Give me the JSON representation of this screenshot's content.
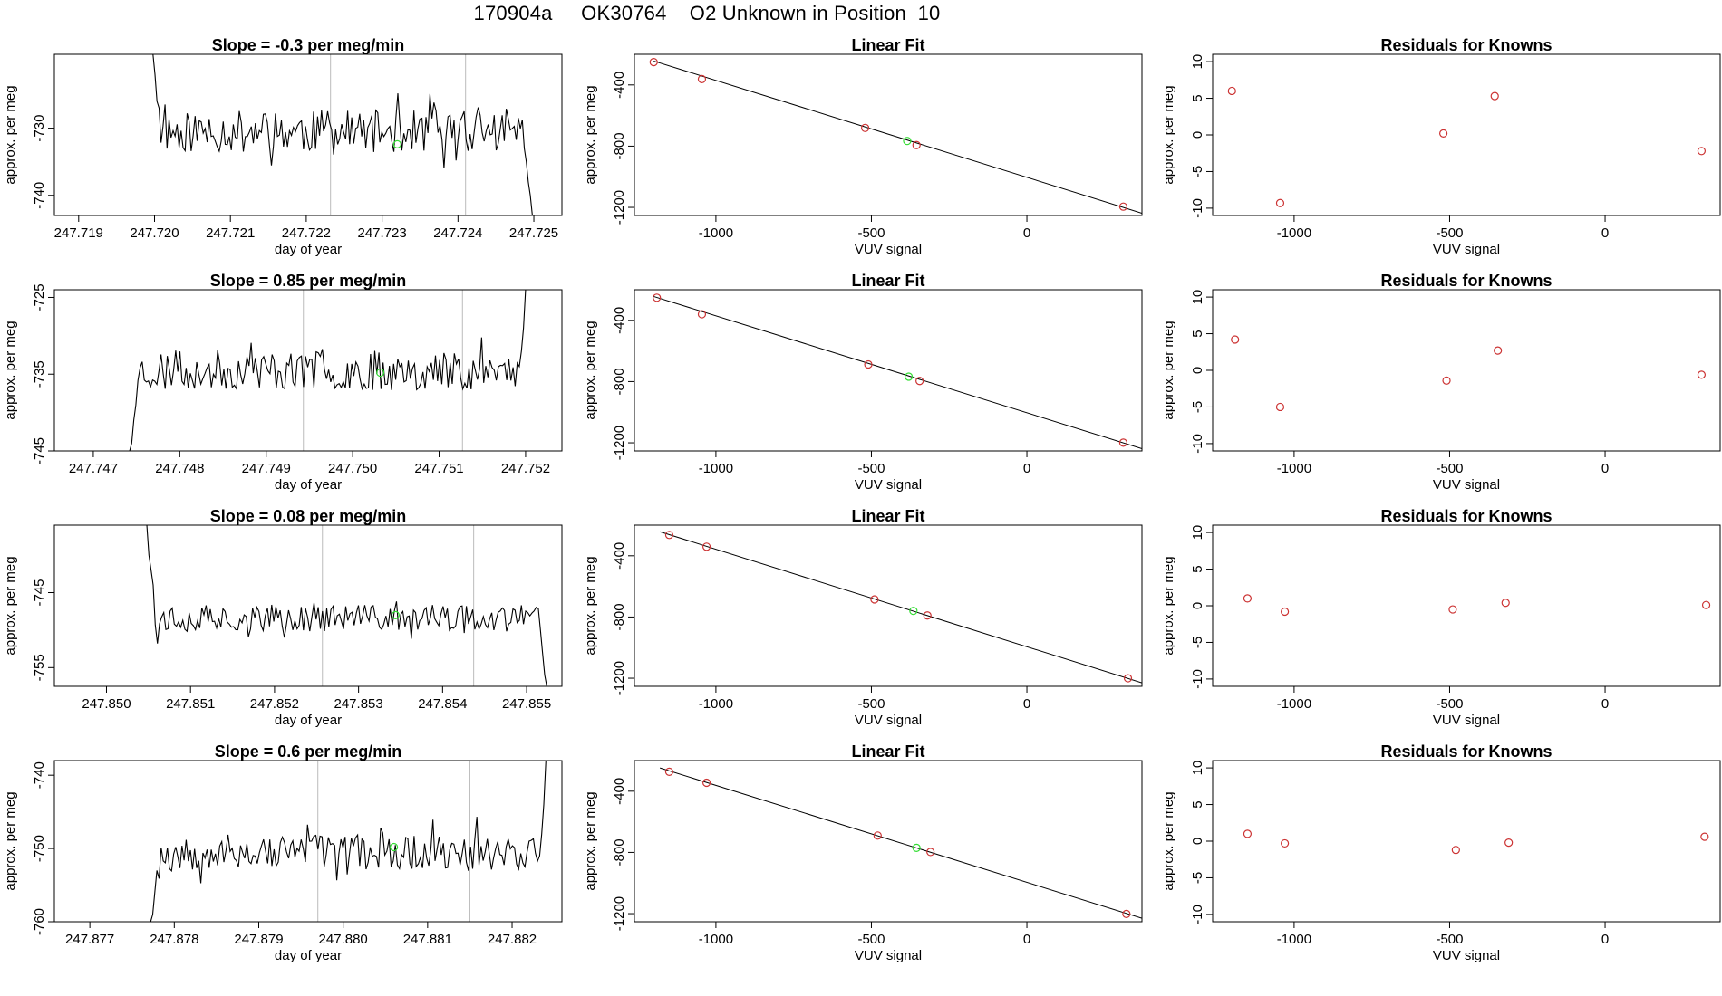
{
  "figure": {
    "title": "170904a     OK30764    O2 Unknown in Position  10"
  },
  "colors": {
    "trace": "#000000",
    "known_point": "#cc3333",
    "unknown_point": "#33dd33",
    "marker_line": "#bbbbbb"
  },
  "chart_data": [
    {
      "type": "line",
      "row": 1,
      "panel": "time",
      "title": "Slope =  -0.3  per meg/min",
      "xlabel": "day of year",
      "ylabel": "approx. per meg",
      "xlim": [
        247.71868,
        247.72537
      ],
      "ylim": [
        -743,
        -719
      ],
      "xticks": [
        247.719,
        247.72,
        247.721,
        247.722,
        247.723,
        247.724,
        247.725
      ],
      "xtick_labels": [
        "247.719",
        "247.720",
        "247.721",
        "247.722",
        "247.723",
        "247.724",
        "247.725"
      ],
      "yticks": [
        -740,
        -730
      ],
      "ytick_labels": [
        "-740",
        "-730"
      ],
      "markers_x": [
        247.72232,
        247.7241
      ],
      "trace": {
        "start": 247.71998,
        "end": 247.72498,
        "base": -730.5,
        "amp": 3.2,
        "seed": 11,
        "head": [
          -719,
          -722,
          -726,
          -727
        ],
        "tail": [
          -733,
          -735,
          -738,
          -740,
          -743
        ]
      },
      "unknown_point": {
        "x": 247.7232,
        "y": -732.4
      }
    },
    {
      "type": "scatter",
      "row": 1,
      "panel": "fit",
      "title": "Linear Fit",
      "xlabel": "VUV signal",
      "ylabel": "approx. per meg",
      "xlim": [
        -1262,
        370
      ],
      "ylim": [
        -1253,
        -200
      ],
      "xticks": [
        -1000,
        -500,
        0
      ],
      "xtick_labels": [
        "-1000",
        "-500",
        "0"
      ],
      "yticks": [
        -400,
        -800,
        -1200
      ],
      "ytick_labels": [
        "-400",
        "-800",
        "-1200"
      ],
      "line": {
        "x": [
          -1200,
          370
        ],
        "y": [
          -244,
          -1238
        ]
      },
      "knowns": [
        {
          "x": -1200,
          "y": -251
        },
        {
          "x": -1045,
          "y": -362
        },
        {
          "x": -520,
          "y": -681
        },
        {
          "x": -355,
          "y": -793
        },
        {
          "x": 310,
          "y": -1195
        }
      ],
      "unknown": {
        "x": -385,
        "y": -766
      }
    },
    {
      "type": "scatter",
      "row": 1,
      "panel": "residuals",
      "title": "Residuals for Knowns",
      "xlabel": "VUV signal",
      "ylabel": "approx. per meg",
      "xlim": [
        -1262,
        370
      ],
      "ylim": [
        -11,
        11
      ],
      "xticks": [
        -1000,
        -500,
        0
      ],
      "xtick_labels": [
        "-1000",
        "-500",
        "0"
      ],
      "yticks": [
        10,
        5,
        0,
        -5,
        -10
      ],
      "ytick_labels": [
        "10",
        "5",
        "0",
        "-5",
        "-10"
      ],
      "points": [
        {
          "x": -1200,
          "y": 6.0
        },
        {
          "x": -1045,
          "y": -9.3
        },
        {
          "x": -520,
          "y": 0.2
        },
        {
          "x": -355,
          "y": 5.3
        },
        {
          "x": 310,
          "y": -2.2
        }
      ]
    },
    {
      "type": "line",
      "row": 2,
      "panel": "time",
      "title": "Slope =  0.85  per meg/min",
      "xlabel": "day of year",
      "ylabel": "approx. per meg",
      "xlim": [
        247.74655,
        247.75242
      ],
      "ylim": [
        -745,
        -724
      ],
      "xticks": [
        247.747,
        247.748,
        247.749,
        247.75,
        247.751,
        247.752
      ],
      "xtick_labels": [
        "247.747",
        "247.748",
        "247.749",
        "247.750",
        "247.751",
        "247.752"
      ],
      "yticks": [
        -745,
        -735,
        -725
      ],
      "ytick_labels": [
        "-745",
        "-735",
        "-725"
      ],
      "markers_x": [
        247.74943,
        247.75127
      ],
      "trace": {
        "start": 247.74742,
        "end": 247.752,
        "base": -734.5,
        "amp": 2.6,
        "seed": 23,
        "head": [
          -745,
          -744,
          -741,
          -739
        ],
        "tail": [
          -734,
          -732,
          -729,
          -724
        ]
      },
      "unknown_point": {
        "x": 247.75032,
        "y": -734.8
      }
    },
    {
      "type": "scatter",
      "row": 2,
      "panel": "fit",
      "title": "Linear Fit",
      "xlabel": "VUV signal",
      "ylabel": "approx. per meg",
      "xlim": [
        -1262,
        370
      ],
      "ylim": [
        -1253,
        -200
      ],
      "xticks": [
        -1000,
        -500,
        0
      ],
      "xtick_labels": [
        "-1000",
        "-500",
        "0"
      ],
      "yticks": [
        -400,
        -800,
        -1200
      ],
      "ytick_labels": [
        "-400",
        "-800",
        "-1200"
      ],
      "line": {
        "x": [
          -1200,
          370
        ],
        "y": [
          -244,
          -1238
        ]
      },
      "knowns": [
        {
          "x": -1190,
          "y": -252
        },
        {
          "x": -1045,
          "y": -360
        },
        {
          "x": -510,
          "y": -688
        },
        {
          "x": -345,
          "y": -796
        },
        {
          "x": 310,
          "y": -1199
        }
      ],
      "unknown": {
        "x": -380,
        "y": -768
      }
    },
    {
      "type": "scatter",
      "row": 2,
      "panel": "residuals",
      "title": "Residuals for Knowns",
      "xlabel": "VUV signal",
      "ylabel": "approx. per meg",
      "xlim": [
        -1262,
        370
      ],
      "ylim": [
        -11,
        11
      ],
      "xticks": [
        -1000,
        -500,
        0
      ],
      "xtick_labels": [
        "-1000",
        "-500",
        "0"
      ],
      "yticks": [
        10,
        5,
        0,
        -5,
        -10
      ],
      "ytick_labels": [
        "10",
        "5",
        "0",
        "-5",
        "-10"
      ],
      "points": [
        {
          "x": -1190,
          "y": 4.2
        },
        {
          "x": -1045,
          "y": -5.0
        },
        {
          "x": -510,
          "y": -1.4
        },
        {
          "x": -345,
          "y": 2.7
        },
        {
          "x": 310,
          "y": -0.6
        }
      ]
    },
    {
      "type": "line",
      "row": 3,
      "panel": "time",
      "title": "Slope =  0.08  per meg/min",
      "xlabel": "day of year",
      "ylabel": "approx. per meg",
      "xlim": [
        247.84938,
        247.85542
      ],
      "ylim": [
        -757.5,
        -736
      ],
      "xticks": [
        247.85,
        247.851,
        247.852,
        247.853,
        247.854,
        247.855
      ],
      "xtick_labels": [
        "247.850",
        "247.851",
        "247.852",
        "247.853",
        "247.854",
        "247.855"
      ],
      "yticks": [
        -755,
        -745
      ],
      "ytick_labels": [
        "-755",
        "-745"
      ],
      "markers_x": [
        247.85257,
        247.85437
      ],
      "trace": {
        "start": 247.85048,
        "end": 247.85524,
        "base": -748.4,
        "amp": 1.8,
        "seed": 37,
        "head": [
          -736,
          -740,
          -742,
          -744
        ],
        "tail": [
          -750,
          -753,
          -756,
          -757.5
        ]
      },
      "unknown_point": {
        "x": 247.85344,
        "y": -748.0
      }
    },
    {
      "type": "scatter",
      "row": 3,
      "panel": "fit",
      "title": "Linear Fit",
      "xlabel": "VUV signal",
      "ylabel": "approx. per meg",
      "xlim": [
        -1262,
        370
      ],
      "ylim": [
        -1253,
        -200
      ],
      "xticks": [
        -1000,
        -500,
        0
      ],
      "xtick_labels": [
        "-1000",
        "-500",
        "0"
      ],
      "yticks": [
        -400,
        -800,
        -1200
      ],
      "ytick_labels": [
        "-400",
        "-800",
        "-1200"
      ],
      "line": {
        "x": [
          -1180,
          370
        ],
        "y": [
          -243,
          -1230
        ]
      },
      "knowns": [
        {
          "x": -1150,
          "y": -264
        },
        {
          "x": -1030,
          "y": -341
        },
        {
          "x": -490,
          "y": -685
        },
        {
          "x": -320,
          "y": -790
        },
        {
          "x": 325,
          "y": -1200
        }
      ],
      "unknown": {
        "x": -365,
        "y": -760
      }
    },
    {
      "type": "scatter",
      "row": 3,
      "panel": "residuals",
      "title": "Residuals for Knowns",
      "xlabel": "VUV signal",
      "ylabel": "approx. per meg",
      "xlim": [
        -1262,
        370
      ],
      "ylim": [
        -11,
        11
      ],
      "xticks": [
        -1000,
        -500,
        0
      ],
      "xtick_labels": [
        "-1000",
        "-500",
        "0"
      ],
      "yticks": [
        10,
        5,
        0,
        -5,
        -10
      ],
      "ytick_labels": [
        "10",
        "5",
        "0",
        "-5",
        "-10"
      ],
      "points": [
        {
          "x": -1150,
          "y": 1.0
        },
        {
          "x": -1030,
          "y": -0.8
        },
        {
          "x": -490,
          "y": -0.5
        },
        {
          "x": -320,
          "y": 0.4
        },
        {
          "x": 325,
          "y": 0.1
        }
      ]
    },
    {
      "type": "line",
      "row": 4,
      "panel": "time",
      "title": "Slope =  0.6  per meg/min",
      "xlabel": "day of year",
      "ylabel": "approx. per meg",
      "xlim": [
        247.87658,
        247.88259
      ],
      "ylim": [
        -760,
        -738
      ],
      "xticks": [
        247.877,
        247.878,
        247.879,
        247.88,
        247.881,
        247.882
      ],
      "xtick_labels": [
        "247.877",
        "247.878",
        "247.879",
        "247.880",
        "247.881",
        "247.882"
      ],
      "yticks": [
        -760,
        -750,
        -740
      ],
      "ytick_labels": [
        "-760",
        "-750",
        "-740"
      ],
      "markers_x": [
        247.8797,
        247.8815
      ],
      "trace": {
        "start": 247.87772,
        "end": 247.8824,
        "base": -750.5,
        "amp": 2.4,
        "seed": 53,
        "head": [
          -760,
          -759,
          -756,
          -753
        ],
        "tail": [
          -751,
          -748,
          -744,
          -738
        ]
      },
      "unknown_point": {
        "x": 247.8806,
        "y": -749.8
      }
    },
    {
      "type": "scatter",
      "row": 4,
      "panel": "fit",
      "title": "Linear Fit",
      "xlabel": "VUV signal",
      "ylabel": "approx. per meg",
      "xlim": [
        -1262,
        370
      ],
      "ylim": [
        -1253,
        -200
      ],
      "xticks": [
        -1000,
        -500,
        0
      ],
      "xtick_labels": [
        "-1000",
        "-500",
        "0"
      ],
      "yticks": [
        -400,
        -800,
        -1200
      ],
      "ytick_labels": [
        "-400",
        "-800",
        "-1200"
      ],
      "line": {
        "x": [
          -1180,
          370
        ],
        "y": [
          -248,
          -1230
        ]
      },
      "knowns": [
        {
          "x": -1150,
          "y": -273
        },
        {
          "x": -1030,
          "y": -345
        },
        {
          "x": -480,
          "y": -690
        },
        {
          "x": -310,
          "y": -797
        },
        {
          "x": 320,
          "y": -1202
        }
      ],
      "unknown": {
        "x": -355,
        "y": -770
      }
    },
    {
      "type": "scatter",
      "row": 4,
      "panel": "residuals",
      "title": "Residuals for Knowns",
      "xlabel": "VUV signal",
      "ylabel": "approx. per meg",
      "xlim": [
        -1262,
        370
      ],
      "ylim": [
        -11,
        11
      ],
      "xticks": [
        -1000,
        -500,
        0
      ],
      "xtick_labels": [
        "-1000",
        "-500",
        "0"
      ],
      "yticks": [
        10,
        5,
        0,
        -5,
        -10
      ],
      "ytick_labels": [
        "10",
        "5",
        "0",
        "-5",
        "-10"
      ],
      "points": [
        {
          "x": -1150,
          "y": 1.0
        },
        {
          "x": -1030,
          "y": -0.3
        },
        {
          "x": -480,
          "y": -1.2
        },
        {
          "x": -310,
          "y": -0.2
        },
        {
          "x": 320,
          "y": 0.6
        }
      ]
    }
  ]
}
